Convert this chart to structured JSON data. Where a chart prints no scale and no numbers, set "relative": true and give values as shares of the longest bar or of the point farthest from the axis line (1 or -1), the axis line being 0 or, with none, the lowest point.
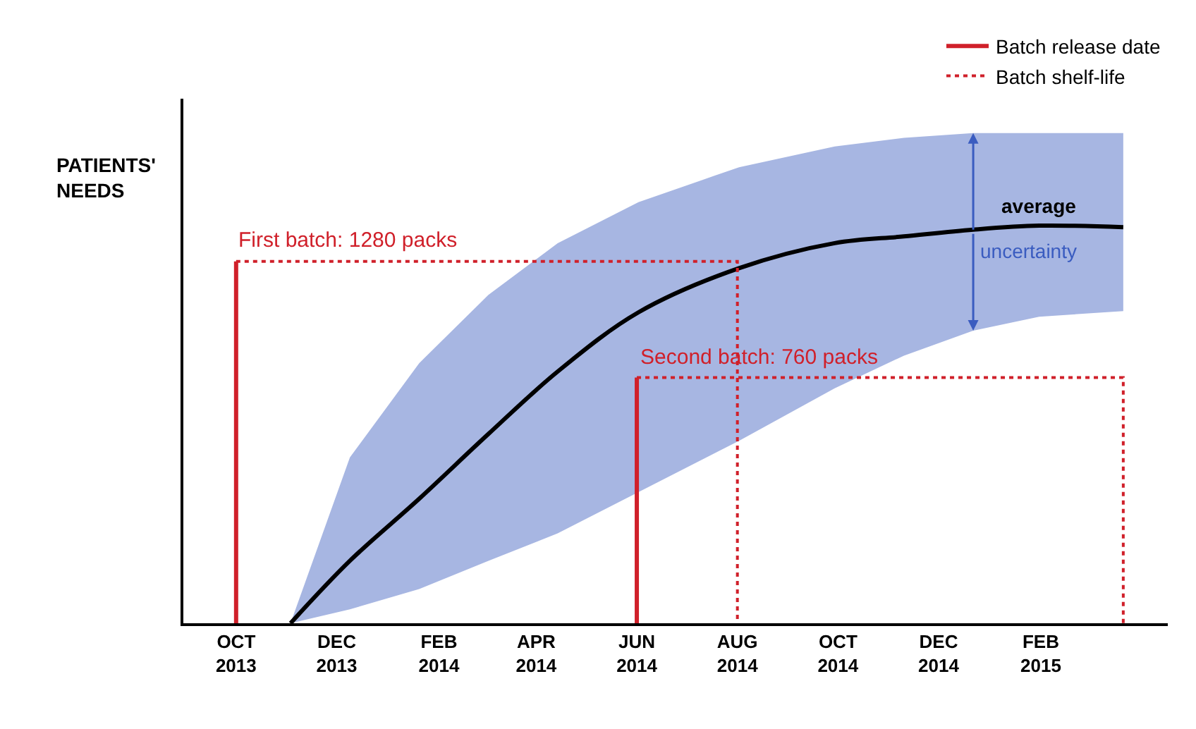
{
  "chart_data": {
    "type": "line",
    "relative": true,
    "ylabel": "PATIENTS' NEEDS",
    "xlim": [
      "2013-08-30",
      "2015-04-19"
    ],
    "xticks": [
      {
        "value": "2013-10-01",
        "label": "OCT 2013"
      },
      {
        "value": "2013-12-01",
        "label": "DEC 2013"
      },
      {
        "value": "2014-02-01",
        "label": "FEB 2014"
      },
      {
        "value": "2014-04-01",
        "label": "APR 2014"
      },
      {
        "value": "2014-06-01",
        "label": "JUN 2014"
      },
      {
        "value": "2014-08-01",
        "label": "AUG 2014"
      },
      {
        "value": "2014-10-01",
        "label": "OCT 2014"
      },
      {
        "value": "2014-12-01",
        "label": "DEC 2014"
      },
      {
        "value": "2015-02-01",
        "label": "FEB 2015"
      }
    ],
    "legend": "top right",
    "series": [
      {
        "name": "average",
        "color": "#000000",
        "line_style": "solid",
        "x": [
          "2013-11-03",
          "2013-12-09",
          "2014-01-20",
          "2014-03-03",
          "2014-04-14",
          "2014-06-02",
          "2014-08-02",
          "2014-09-29",
          "2014-11-10",
          "2014-12-22",
          "2015-01-31",
          "2015-03-23"
        ],
        "values": [
          0,
          0.157,
          0.313,
          0.476,
          0.633,
          0.782,
          0.893,
          0.956,
          0.973,
          0.99,
          1,
          0.996
        ],
        "lower": [
          0,
          0.035,
          0.086,
          0.157,
          0.226,
          0.33,
          0.459,
          0.591,
          0.673,
          0.736,
          0.771,
          0.785
        ],
        "upper": [
          0,
          0.417,
          0.654,
          0.826,
          0.956,
          1.059,
          1.147,
          1.199,
          1.221,
          1.233,
          1.233,
          1.233
        ]
      },
      {
        "name": "Batch release date",
        "color": "#d0202a",
        "line_style": "solid",
        "x": [
          "2013-10-01",
          "2013-10-01"
        ],
        "values": [
          0,
          0.91
        ]
      },
      {
        "color": "#d0202a",
        "line_style": "solid",
        "x": [
          "2014-06-01",
          "2014-06-01"
        ],
        "values": [
          0,
          0.618
        ]
      },
      {
        "name": "Batch shelf-life",
        "color": "#d0202a",
        "line_style": "dotted",
        "x": [
          "2013-10-01",
          "2014-08-01",
          "2014-08-01"
        ],
        "values": [
          0.91,
          0.91,
          0
        ]
      },
      {
        "color": "#d0202a",
        "line_style": "dotted",
        "x": [
          "2014-06-01",
          "2015-03-23",
          "2015-03-23"
        ],
        "values": [
          0.618,
          0.618,
          0
        ]
      }
    ],
    "annotations": [
      {
        "text": "First batch: 1280 packs",
        "x": "2013-10-01",
        "y": 0.91
      },
      {
        "text": "Second batch: 760 packs",
        "x": "2014-06-01",
        "y": 0.618
      },
      "uncertainty"
    ]
  }
}
